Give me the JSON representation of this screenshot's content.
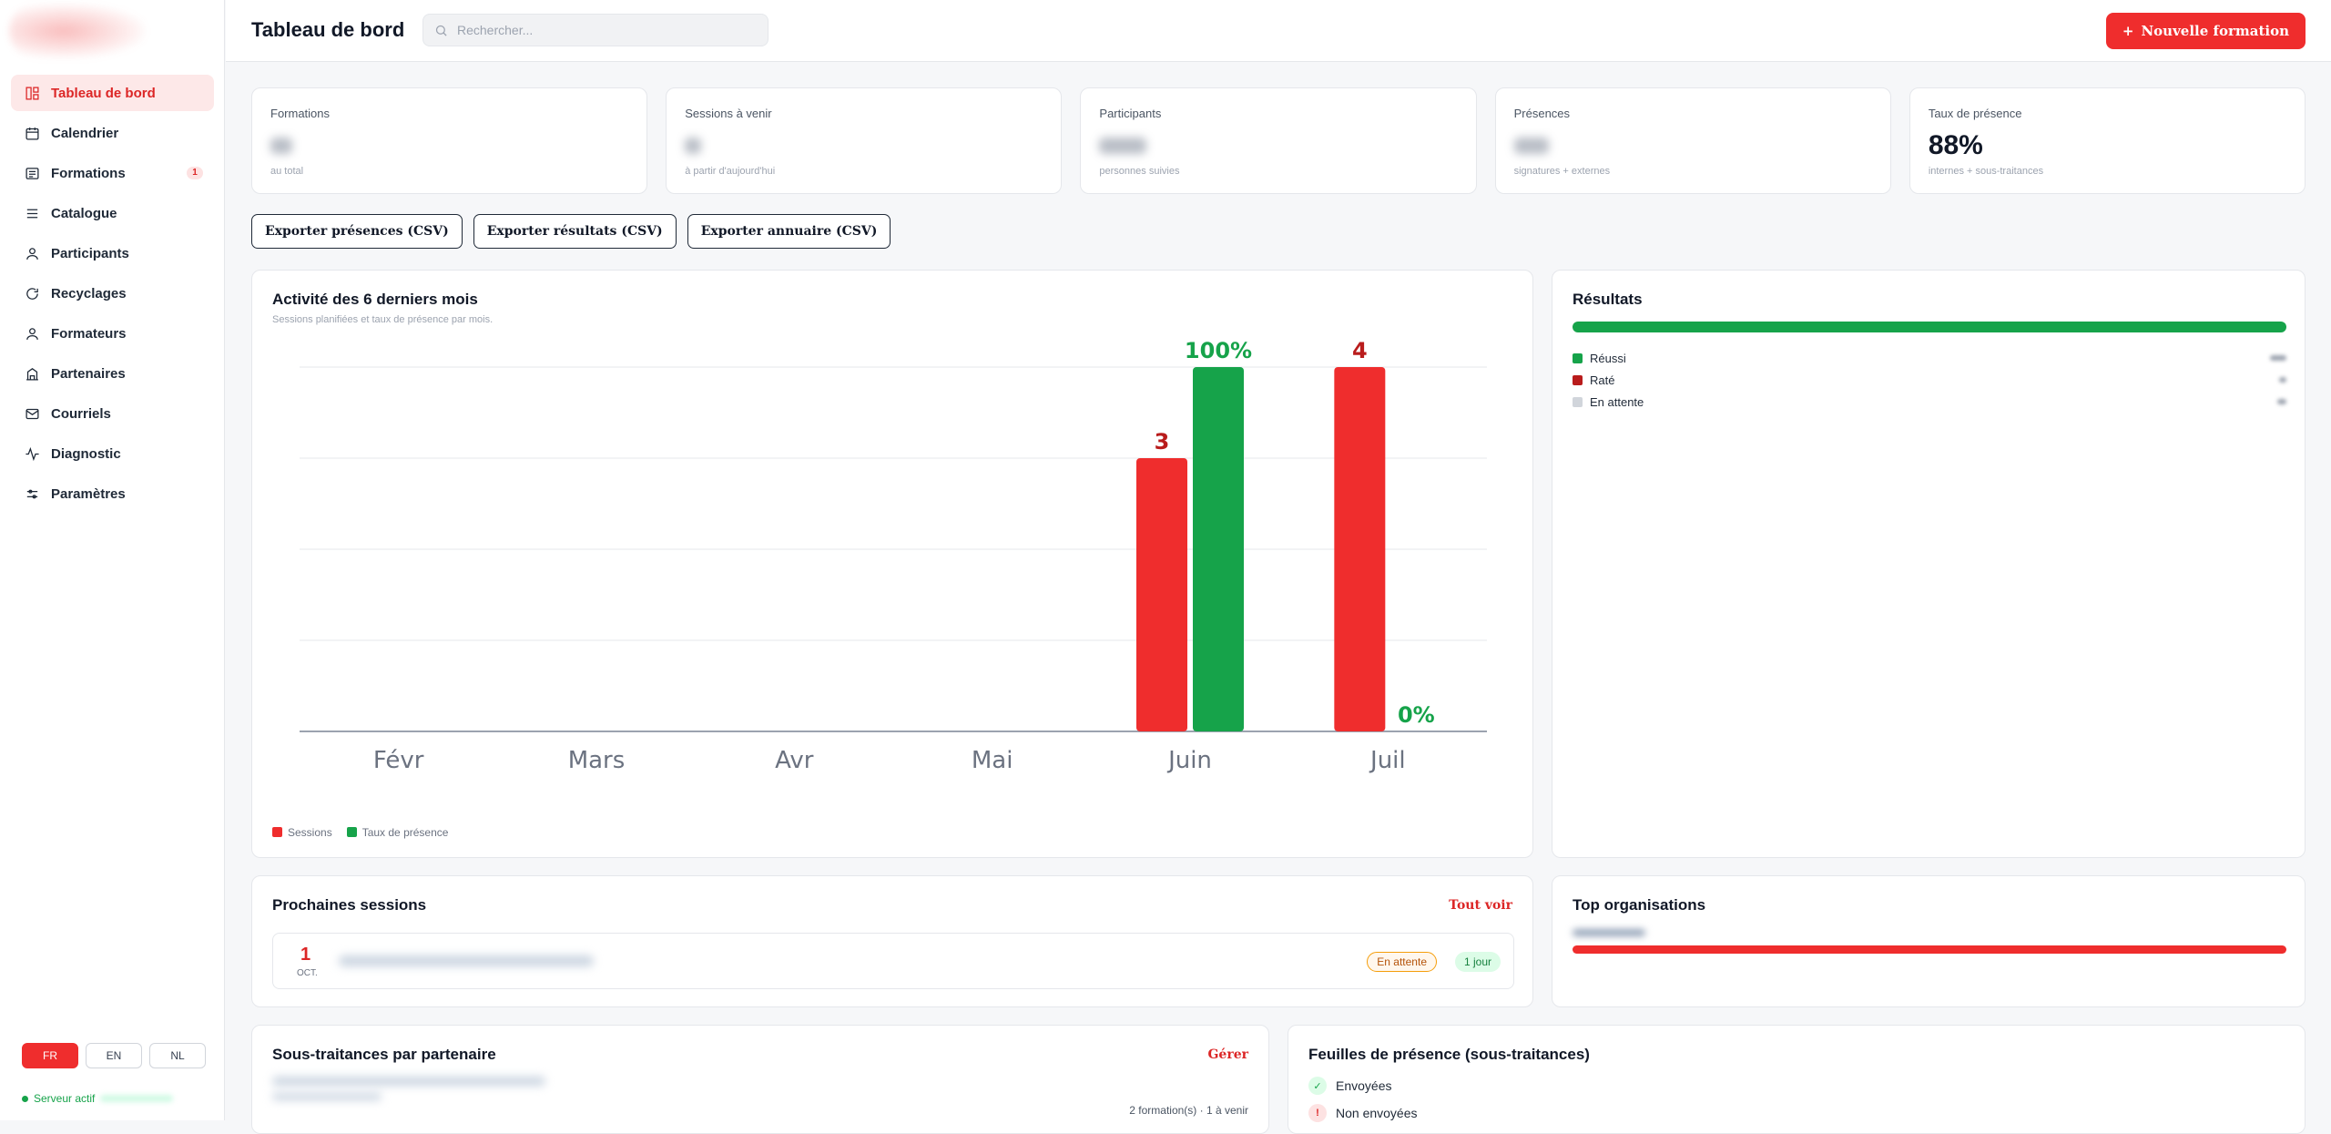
{
  "sidebar": {
    "items": [
      {
        "label": "Tableau de bord",
        "icon": "dashboard-icon",
        "active": true
      },
      {
        "label": "Calendrier",
        "icon": "calendar-icon"
      },
      {
        "label": "Formations",
        "icon": "formations-icon",
        "badge": "1"
      },
      {
        "label": "Catalogue",
        "icon": "list-icon"
      },
      {
        "label": "Participants",
        "icon": "user-icon"
      },
      {
        "label": "Recyclages",
        "icon": "refresh-icon"
      },
      {
        "label": "Formateurs",
        "icon": "user-icon"
      },
      {
        "label": "Partenaires",
        "icon": "building-icon"
      },
      {
        "label": "Courriels",
        "icon": "mail-icon"
      },
      {
        "label": "Diagnostic",
        "icon": "activity-icon"
      },
      {
        "label": "Paramètres",
        "icon": "sliders-icon"
      }
    ],
    "languages": [
      "FR",
      "EN",
      "NL"
    ],
    "active_language": "FR",
    "server_status": "Serveur actif"
  },
  "header": {
    "title": "Tableau de bord",
    "search_placeholder": "Rechercher...",
    "new_button": "Nouvelle formation"
  },
  "stats": [
    {
      "label": "Formations",
      "sub": "au total"
    },
    {
      "label": "Sessions à venir",
      "sub": "à partir d'aujourd'hui"
    },
    {
      "label": "Participants",
      "sub": "personnes suivies"
    },
    {
      "label": "Présences",
      "sub": "signatures + externes"
    },
    {
      "label": "Taux de présence",
      "value": "88%",
      "sub": "internes + sous-traitances"
    }
  ],
  "exports": [
    "Exporter présences (CSV)",
    "Exporter résultats (CSV)",
    "Exporter annuaire (CSV)"
  ],
  "activity": {
    "title": "Activité des 6 derniers mois",
    "subtitle": "Sessions planifiées et taux de présence par mois.",
    "legend": [
      "Sessions",
      "Taux de présence"
    ]
  },
  "chart_data": {
    "type": "bar",
    "categories": [
      "Févr",
      "Mars",
      "Avr",
      "Mai",
      "Juin",
      "Juil"
    ],
    "series": [
      {
        "name": "Sessions",
        "values": [
          0,
          0,
          0,
          0,
          3,
          4
        ],
        "color": "#ef2d2d"
      },
      {
        "name": "Taux de présence",
        "values": [
          0,
          0,
          0,
          0,
          100,
          0
        ],
        "color": "#16a34a"
      }
    ],
    "data_labels": [
      {
        "category": "Juin",
        "series": "Sessions",
        "text": "3"
      },
      {
        "category": "Juin",
        "series": "Taux de présence",
        "text": "100%"
      },
      {
        "category": "Juil",
        "series": "Sessions",
        "text": "4"
      },
      {
        "category": "Juil",
        "series": "Taux de présence",
        "text": "0%"
      }
    ],
    "ylim_sessions": [
      0,
      4
    ],
    "ylim_rate": [
      0,
      100
    ],
    "grid": true
  },
  "results": {
    "title": "Résultats",
    "items": [
      {
        "label": "Réussi",
        "color": "#16a34a"
      },
      {
        "label": "Raté",
        "color": "#b91c1c"
      },
      {
        "label": "En attente",
        "color": "#d1d5db"
      }
    ]
  },
  "next_sessions": {
    "title": "Prochaines sessions",
    "link": "Tout voir",
    "items": [
      {
        "day": "1",
        "month": "OCT.",
        "status": "En attente",
        "duration": "1 jour"
      }
    ]
  },
  "top_orgs": {
    "title": "Top organisations"
  },
  "subcontracting": {
    "title": "Sous-traitances par partenaire",
    "link": "Gérer",
    "meta": "2 formation(s) · 1 à venir"
  },
  "sheets": {
    "title": "Feuilles de présence (sous-traitances)",
    "items": [
      {
        "label": "Envoyées",
        "icon": "check-icon"
      },
      {
        "label": "Non envoyées",
        "icon": "alert-icon"
      }
    ]
  }
}
